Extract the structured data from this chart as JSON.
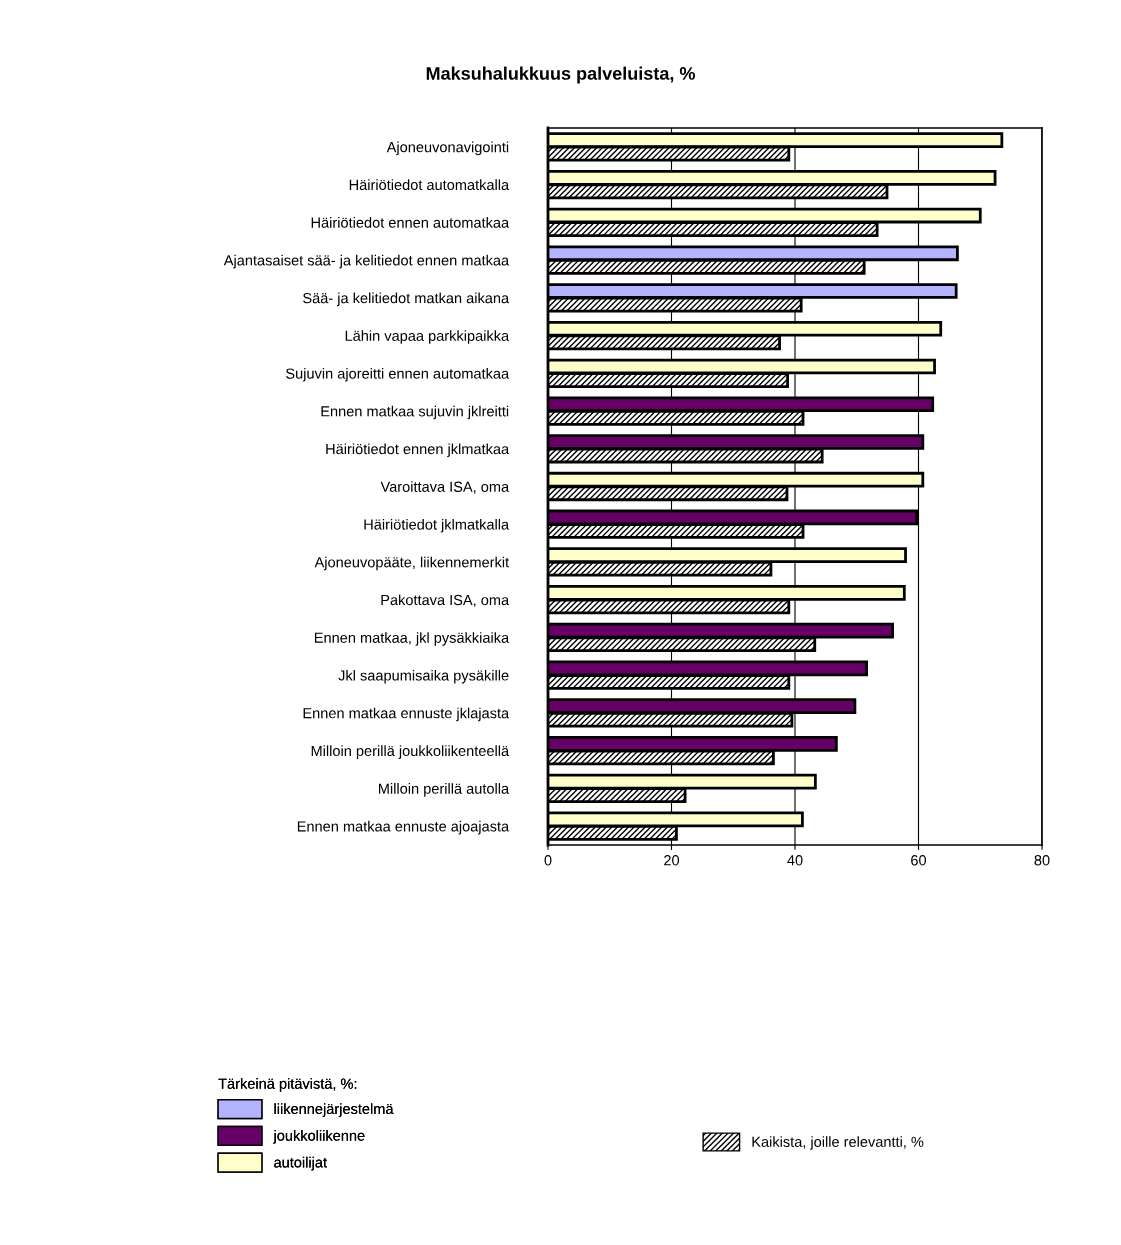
{
  "chart_data": {
    "type": "bar",
    "orientation": "horizontal",
    "title": "Maksuhalukkuus palveluista, %",
    "categories": [
      "Ajoneuvonavigointi",
      "Häiriötiedot automatkalla",
      "Häiriötiedot ennen automatkaa",
      "Ajantasaiset sää- ja kelitiedot ennen matkaa",
      "Sää- ja kelitiedot matkan aikana",
      "Lähin vapaa parkkipaikka",
      "Sujuvin ajoreitti ennen automatkaa",
      "Ennen matkaa sujuvin jklreitti",
      "Häiriötiedot ennen jklmatkaa",
      "Varoittava ISA, oma",
      "Häiriötiedot jklmatkalla",
      "Ajoneuvopääte, liikennemerkit",
      "Pakottava ISA, oma",
      "Ennen matkaa, jkl pysäkkiaika",
      "Jkl saapumisaika pysäkille",
      "Ennen matkaa ennuste jklajasta",
      "Milloin perillä joukkoliikenteellä",
      "Milloin perillä autolla",
      "Ennen matkaa ennuste ajoajasta"
    ],
    "series": [
      {
        "name": "liikennejärjestelmä",
        "color": "#b3b3ff",
        "values": [
          null,
          null,
          null,
          66.3,
          66.1,
          null,
          null,
          null,
          null,
          null,
          null,
          null,
          null,
          null,
          null,
          null,
          null,
          null,
          null
        ]
      },
      {
        "name": "joukkoliikenne",
        "color": "#660066",
        "values": [
          null,
          null,
          null,
          null,
          null,
          null,
          null,
          62.3,
          60.7,
          null,
          59.7,
          null,
          null,
          55.8,
          51.6,
          49.7,
          46.7,
          null,
          null
        ]
      },
      {
        "name": "autoilijat",
        "color": "#ffffcc",
        "values": [
          73.5,
          72.4,
          70.0,
          null,
          null,
          63.6,
          62.6,
          null,
          null,
          60.7,
          null,
          57.9,
          57.7,
          null,
          null,
          null,
          null,
          43.3,
          41.2
        ]
      },
      {
        "name": "Kaikista, joille relevantti, %",
        "color": "#000000",
        "values": [
          39.0,
          54.9,
          53.3,
          51.2,
          41.0,
          37.5,
          38.8,
          41.3,
          44.4,
          38.7,
          41.3,
          36.1,
          39.0,
          43.2,
          39.0,
          39.5,
          36.5,
          22.2,
          20.8
        ]
      }
    ],
    "legend_title": "Tärkeinä pitävistä, %:",
    "xlim": [
      0,
      80
    ],
    "xticks": [
      0,
      20,
      40,
      60,
      80
    ],
    "grid": "x",
    "legend": "bottom"
  }
}
